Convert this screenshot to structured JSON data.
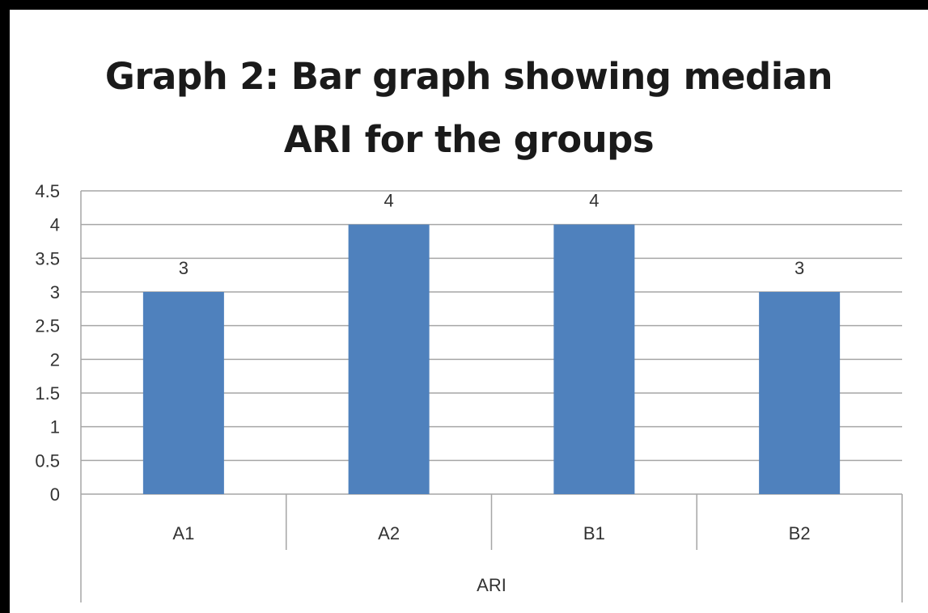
{
  "chart_data": {
    "type": "bar",
    "title_lines": [
      "Graph 2: Bar graph showing median",
      "ARI for the groups"
    ],
    "categories": [
      "A1",
      "A2",
      "B1",
      "B2"
    ],
    "values": [
      3,
      4,
      4,
      3
    ],
    "data_labels": [
      "3",
      "4",
      "4",
      "3"
    ],
    "group_label": "ARI",
    "ylim": [
      0,
      4.5
    ],
    "yticks": [
      "0",
      "0.5",
      "1",
      "1.5",
      "2",
      "2.5",
      "3",
      "3.5",
      "4",
      "4.5"
    ],
    "grid": true,
    "legend": "none",
    "bar_color": "#4f81bd",
    "grid_color": "#a6a6a6"
  }
}
